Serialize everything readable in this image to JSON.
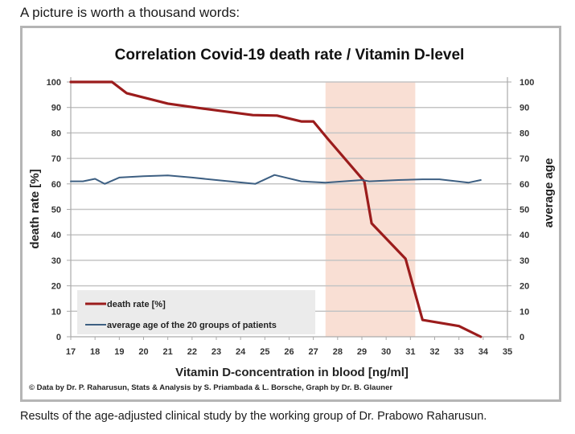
{
  "page": {
    "headline": "A picture is worth a thousand words:",
    "caption": "Results of the age-adjusted clinical study by the working group of Dr. Prabowo Raharusun.",
    "credits": "© Data by Dr. P. Raharusun, Stats & Analysis by S. Priambada & L. Borsche, Graph by Dr. B. Glauner"
  },
  "chart_data": {
    "type": "line",
    "title": "Correlation Covid-19 death rate / Vitamin D-level",
    "xlabel": "Vitamin D-concentration in blood [ng/ml]",
    "ylabel": "death rate [%]",
    "y2label": "average age",
    "xlim": [
      17,
      35
    ],
    "ylim": [
      0,
      100
    ],
    "y2lim": [
      0,
      100
    ],
    "x_ticks": [
      17,
      18,
      19,
      20,
      21,
      22,
      23,
      24,
      25,
      26,
      27,
      28,
      29,
      30,
      31,
      32,
      33,
      34,
      35
    ],
    "y_ticks": [
      0,
      10,
      20,
      30,
      40,
      50,
      60,
      70,
      80,
      90,
      100
    ],
    "y2_ticks": [
      0,
      10,
      20,
      30,
      40,
      50,
      60,
      70,
      80,
      90,
      100
    ],
    "grid": true,
    "legend_position": "bottom-left",
    "highlight_band": {
      "x_start": 27.5,
      "x_end": 31.2,
      "color": "#f9dfd4"
    },
    "series": [
      {
        "name": "death rate [%]",
        "color": "#9b1c1c",
        "axis": "left",
        "points": [
          [
            17,
            100
          ],
          [
            18.7,
            100
          ],
          [
            19.3,
            95.6
          ],
          [
            21,
            91.5
          ],
          [
            22.5,
            89.5
          ],
          [
            24.5,
            87
          ],
          [
            25.5,
            86.8
          ],
          [
            26.5,
            84.5
          ],
          [
            27,
            84.5
          ],
          [
            27.6,
            77.6
          ],
          [
            29.1,
            61
          ],
          [
            29.4,
            44.5
          ],
          [
            30.8,
            30.6
          ],
          [
            31.5,
            6.6
          ],
          [
            33,
            4.2
          ],
          [
            33.9,
            0
          ]
        ]
      },
      {
        "name": "average age of the 20 groups of patients",
        "color": "#3d5f82",
        "axis": "right",
        "points": [
          [
            17,
            61
          ],
          [
            17.5,
            61
          ],
          [
            18,
            62
          ],
          [
            18.4,
            60
          ],
          [
            19,
            62.5
          ],
          [
            20,
            63
          ],
          [
            21,
            63.3
          ],
          [
            22,
            62.5
          ],
          [
            23,
            61.5
          ],
          [
            24.6,
            60
          ],
          [
            25.4,
            63.5
          ],
          [
            26.5,
            61
          ],
          [
            27.5,
            60.5
          ],
          [
            29,
            61.5
          ],
          [
            29.3,
            61
          ],
          [
            30.5,
            61.5
          ],
          [
            31.5,
            61.8
          ],
          [
            32.2,
            61.8
          ],
          [
            33.4,
            60.5
          ],
          [
            33.9,
            61.5
          ]
        ]
      }
    ]
  }
}
